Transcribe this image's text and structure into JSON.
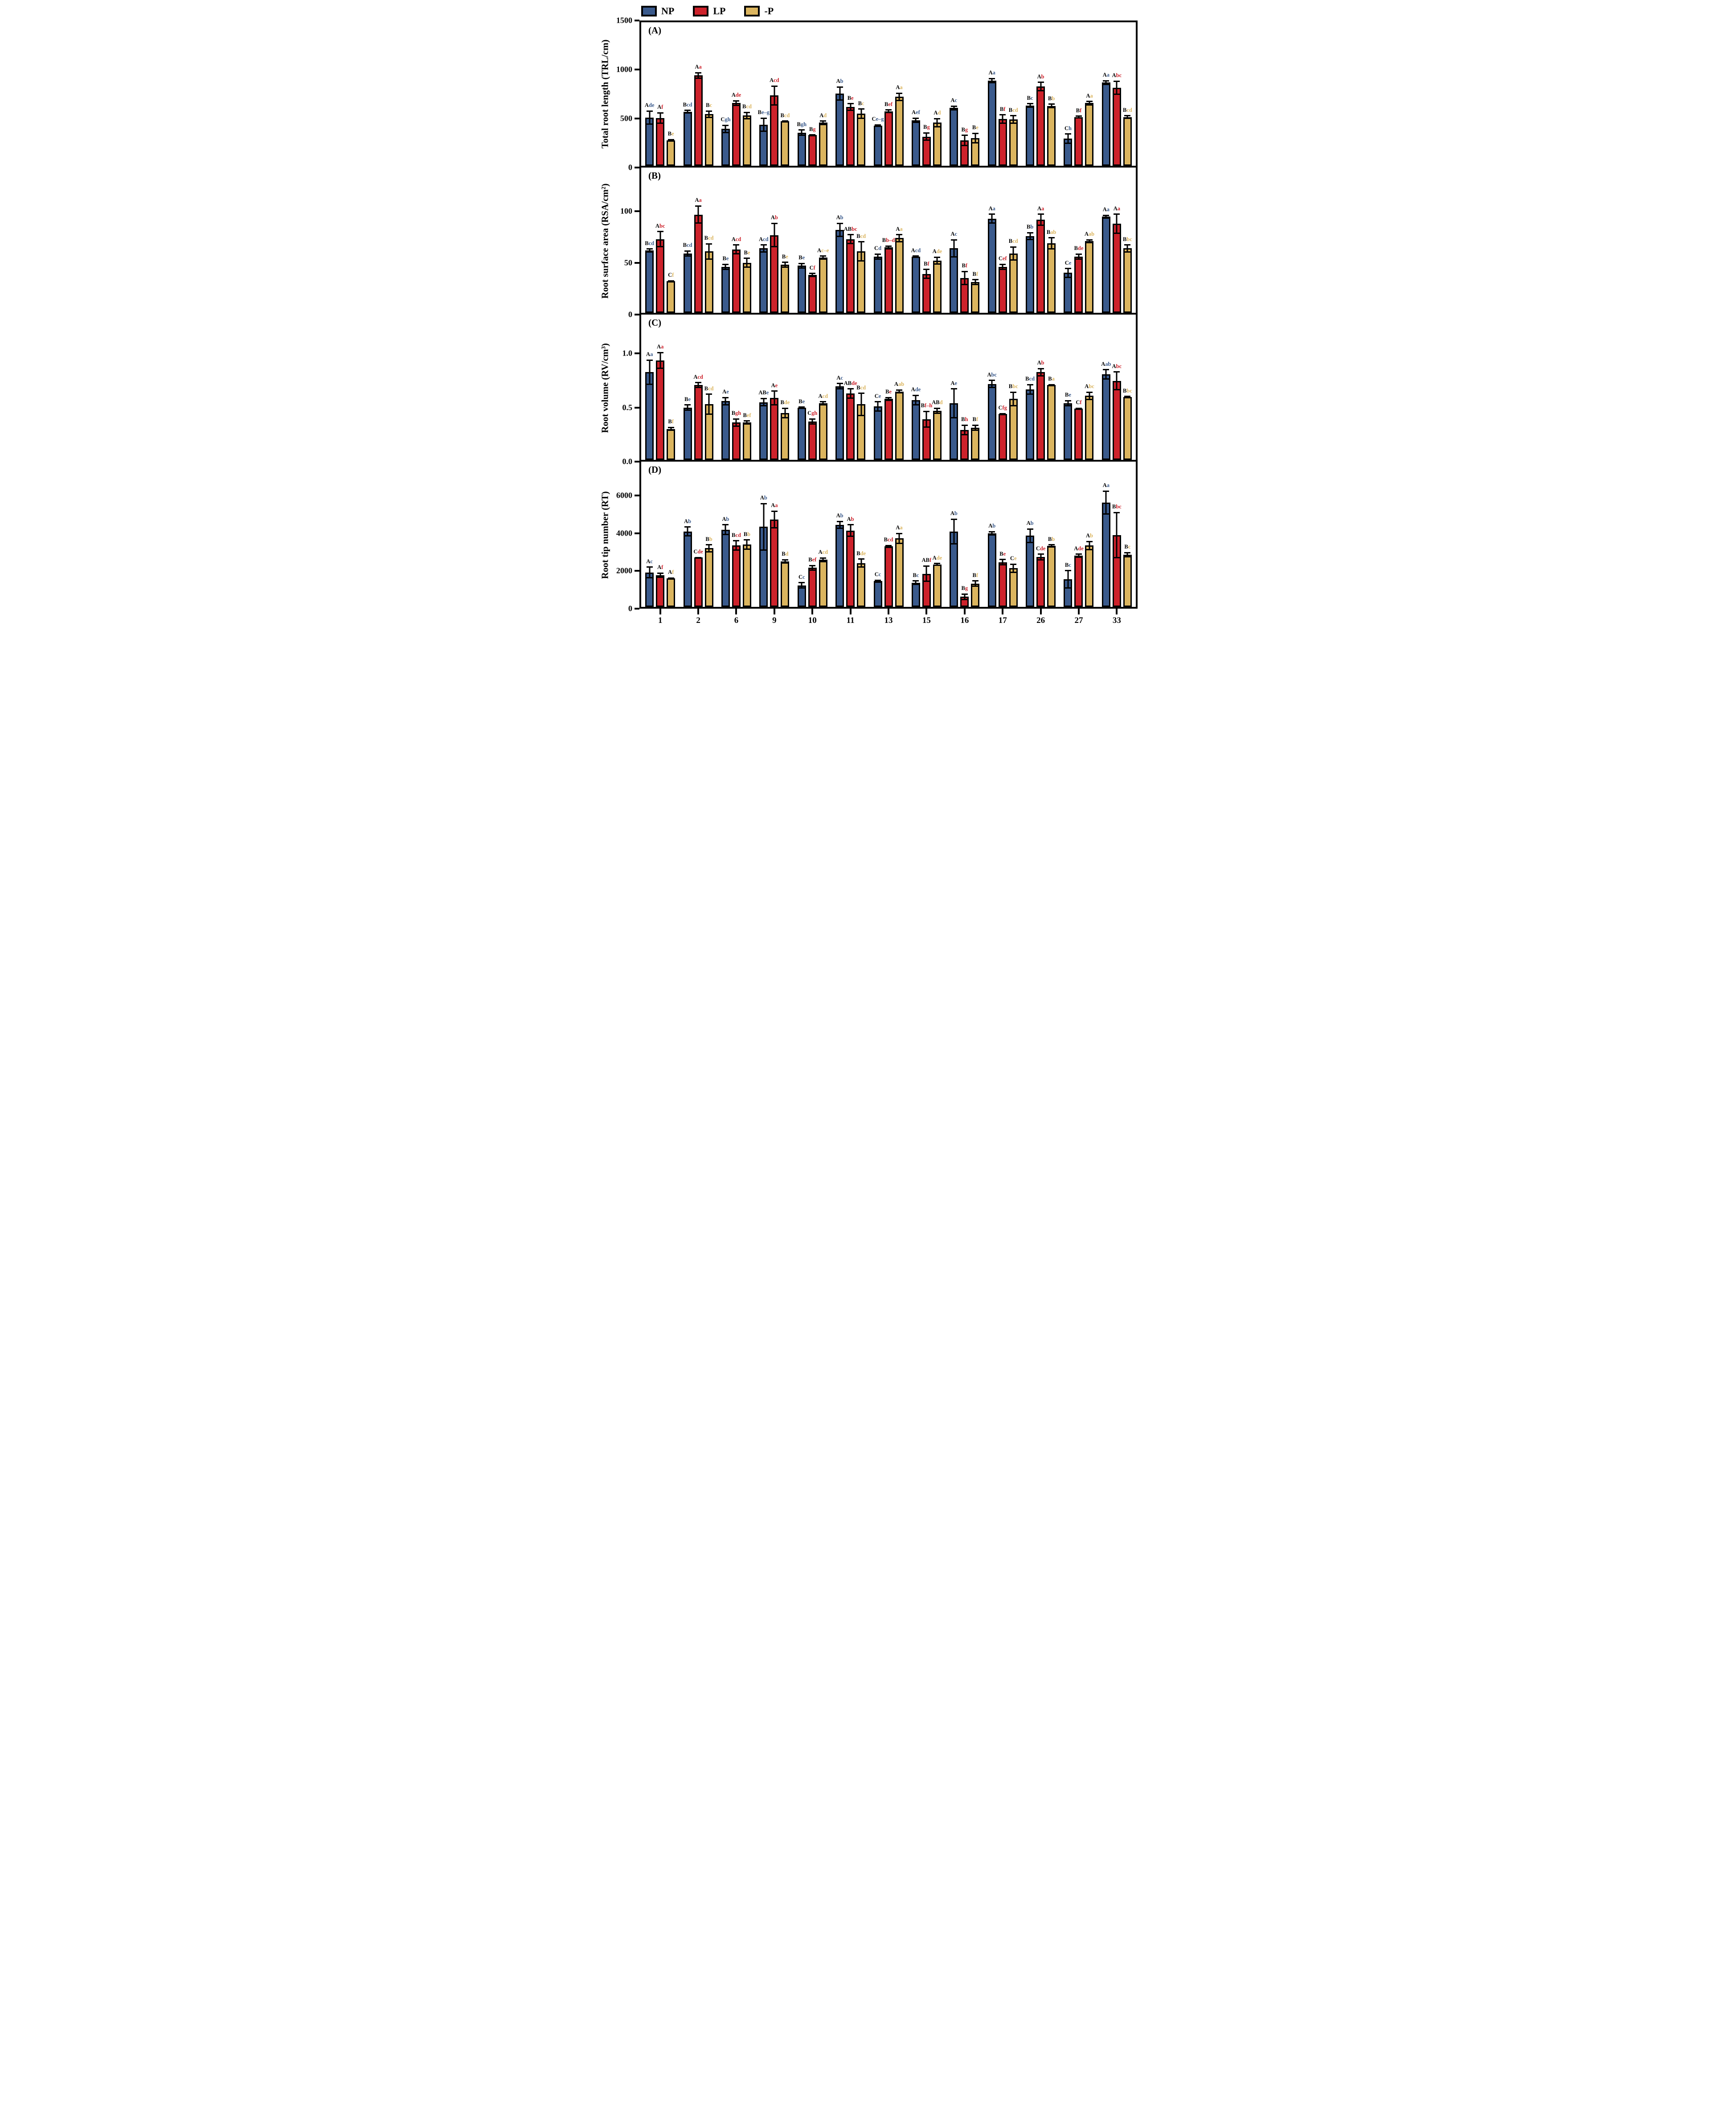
{
  "legend": {
    "items": [
      {
        "label": "NP",
        "color": "#3A5A8C"
      },
      {
        "label": "LP",
        "color": "#CD222B"
      },
      {
        "label": "-P",
        "color": "#DBB55F"
      }
    ]
  },
  "sig_note": "Uppercase letters are shown in black; lowercase letters are shown in the series color.",
  "chart_data": [
    {
      "type": "bar",
      "panel_letter": "(A)",
      "ylabel": "Total root length (TRL/cm)",
      "ymax": 1500,
      "yticks": [
        0,
        500,
        1000,
        1500
      ],
      "ytick_labels": [
        "0",
        "500",
        "1000",
        "1500"
      ],
      "grid": false,
      "categories": [
        "1",
        "2",
        "6",
        "9",
        "10",
        "11",
        "13",
        "15",
        "16",
        "17",
        "26",
        "27",
        "33"
      ],
      "series": [
        {
          "name": "NP",
          "color": "#3A5A8C",
          "values": [
            505,
            565,
            385,
            430,
            345,
            755,
            420,
            475,
            605,
            890,
            630,
            285,
            870
          ],
          "errors": [
            75,
            20,
            45,
            75,
            35,
            75,
            15,
            30,
            25,
            30,
            25,
            55,
            25
          ],
          "sig_labels": [
            "Ade",
            "Bcd",
            "Cgh",
            "Be–g",
            "Bgh",
            "Ab",
            "Ce–g",
            "Aef",
            "Ac",
            "Aa",
            "Bc",
            "Ch",
            "Aa"
          ]
        },
        {
          "name": "LP",
          "color": "#CD222B",
          "values": [
            500,
            945,
            655,
            735,
            320,
            615,
            570,
            305,
            265,
            490,
            830,
            510,
            815
          ],
          "errors": [
            60,
            35,
            30,
            105,
            10,
            40,
            20,
            45,
            60,
            50,
            50,
            15,
            75
          ],
          "sig_labels": [
            "Af",
            "Aa",
            "Ade",
            "Acd",
            "Bg",
            "Be",
            "Bef",
            "Bg",
            "Bg",
            "Bf",
            "Ab",
            "Bf",
            "Abc"
          ]
        },
        {
          "name": "-P",
          "color": "#DBB55F",
          "values": [
            265,
            540,
            525,
            465,
            450,
            545,
            720,
            450,
            290,
            485,
            625,
            655,
            510
          ],
          "errors": [
            15,
            40,
            40,
            10,
            25,
            55,
            45,
            50,
            55,
            45,
            25,
            25,
            20
          ],
          "sig_labels": [
            "Be",
            "Bc",
            "Bcd",
            "Bcd",
            "Ad",
            "Bc",
            "Aa",
            "Ad",
            "Be",
            "Bcd",
            "Bb",
            "Aa",
            "Bcd"
          ]
        }
      ]
    },
    {
      "type": "bar",
      "panel_letter": "(B)",
      "ylabel": "Root surface area (RSA/cm²)",
      "ymax": 142,
      "yticks": [
        0,
        50,
        100
      ],
      "ytick_labels": [
        "0",
        "50",
        "100"
      ],
      "grid": false,
      "categories": [
        "1",
        "2",
        "6",
        "9",
        "10",
        "11",
        "13",
        "15",
        "16",
        "17",
        "26",
        "27",
        "33"
      ],
      "series": [
        {
          "name": "NP",
          "color": "#3A5A8C",
          "values": [
            61,
            58,
            45,
            63,
            46,
            81,
            55,
            55,
            63,
            92,
            75,
            39,
            94
          ],
          "errors": [
            2,
            3,
            3,
            4,
            3,
            7,
            3,
            1,
            9,
            5,
            4,
            5,
            2
          ],
          "sig_labels": [
            "Bcd",
            "Bcd",
            "Be",
            "Acd",
            "Be",
            "Ab",
            "Cd",
            "Acd",
            "Ac",
            "Aa",
            "Bb",
            "Ce",
            "Aa"
          ]
        },
        {
          "name": "LP",
          "color": "#CD222B",
          "values": [
            72,
            96,
            62,
            76,
            37,
            72,
            64,
            38,
            34,
            45,
            91,
            55,
            87
          ],
          "errors": [
            8,
            9,
            5,
            12,
            2,
            5,
            2,
            5,
            7,
            3,
            6,
            3,
            10
          ],
          "sig_labels": [
            "Abc",
            "Aa",
            "Acd",
            "Ab",
            "Cf",
            "ABbc",
            "Bb–d",
            "Bf",
            "Bf",
            "Cef",
            "Aa",
            "Bde",
            "Aa"
          ]
        },
        {
          "name": "-P",
          "color": "#DBB55F",
          "values": [
            31,
            60,
            49,
            47,
            54,
            60,
            73,
            51,
            30,
            58,
            68,
            70,
            63
          ],
          "errors": [
            1,
            8,
            5,
            3,
            2,
            10,
            4,
            4,
            3,
            7,
            6,
            2,
            4
          ],
          "sig_labels": [
            "Cf",
            "Bcd",
            "Be",
            "Be",
            "Ac–e",
            "Bcd",
            "Aa",
            "Ade",
            "Bf",
            "Bcd",
            "Bab",
            "Aab",
            "Bbc"
          ]
        }
      ]
    },
    {
      "type": "bar",
      "panel_letter": "(C)",
      "ylabel": "Root volume (RV/cm³)",
      "ymax": 1.36,
      "yticks": [
        0,
        0.5,
        1.0
      ],
      "ytick_labels": [
        "0.0",
        "0.5",
        "1.0"
      ],
      "grid": false,
      "categories": [
        "1",
        "2",
        "6",
        "9",
        "10",
        "11",
        "13",
        "15",
        "16",
        "17",
        "26",
        "27",
        "33"
      ],
      "series": [
        {
          "name": "NP",
          "color": "#3A5A8C",
          "values": [
            0.82,
            0.49,
            0.55,
            0.54,
            0.49,
            0.69,
            0.5,
            0.56,
            0.53,
            0.71,
            0.66,
            0.53,
            0.8
          ],
          "errors": [
            0.12,
            0.03,
            0.04,
            0.04,
            0.01,
            0.03,
            0.05,
            0.05,
            0.14,
            0.04,
            0.05,
            0.03,
            0.05
          ],
          "sig_labels": [
            "Aa",
            "Be",
            "Ae",
            "ABe",
            "Be",
            "Ac",
            "Ce",
            "Ade",
            "Ae",
            "Abc",
            "Bcd",
            "Be",
            "Aab"
          ]
        },
        {
          "name": "LP",
          "color": "#CD222B",
          "values": [
            0.93,
            0.7,
            0.35,
            0.58,
            0.36,
            0.62,
            0.57,
            0.38,
            0.28,
            0.43,
            0.82,
            0.48,
            0.74
          ],
          "errors": [
            0.08,
            0.03,
            0.04,
            0.07,
            0.03,
            0.05,
            0.02,
            0.08,
            0.05,
            0.01,
            0.04,
            0.01,
            0.09
          ],
          "sig_labels": [
            "Aa",
            "Acd",
            "Bgh",
            "Ae",
            "Cgh",
            "ABde",
            "Be",
            "Bf–h",
            "Bh",
            "Cfg",
            "Ab",
            "Cf",
            "Abc"
          ]
        },
        {
          "name": "-P",
          "color": "#DBB55F",
          "values": [
            0.29,
            0.52,
            0.35,
            0.44,
            0.53,
            0.52,
            0.64,
            0.46,
            0.3,
            0.57,
            0.7,
            0.6,
            0.59
          ],
          "errors": [
            0.02,
            0.1,
            0.02,
            0.05,
            0.02,
            0.11,
            0.02,
            0.03,
            0.03,
            0.07,
            0.01,
            0.04,
            0.01
          ],
          "sig_labels": [
            "Bf",
            "Bcd",
            "Bef",
            "Bde",
            "Acd",
            "Bcd",
            "Aab",
            "ABd",
            "Bf",
            "Bbc",
            "Ba",
            "Abc",
            "Bbc"
          ]
        }
      ]
    },
    {
      "type": "bar",
      "panel_letter": "(D)",
      "ylabel": "Root tip number (RT)",
      "ymax": 7800,
      "yticks": [
        0,
        2000,
        4000,
        6000
      ],
      "ytick_labels": [
        "0",
        "2000",
        "4000",
        "6000"
      ],
      "grid": false,
      "categories": [
        "1",
        "2",
        "6",
        "9",
        "10",
        "11",
        "13",
        "15",
        "16",
        "17",
        "26",
        "27",
        "33"
      ],
      "series": [
        {
          "name": "NP",
          "color": "#3A5A8C",
          "values": [
            1850,
            4050,
            4150,
            4300,
            1150,
            4400,
            1380,
            1300,
            4050,
            3950,
            3820,
            1480,
            5600
          ],
          "errors": [
            320,
            280,
            300,
            1280,
            180,
            220,
            90,
            130,
            700,
            120,
            400,
            500,
            650
          ],
          "sig_labels": [
            "Ac",
            "Ab",
            "Ab",
            "Ab",
            "Cc",
            "Ab",
            "Cc",
            "Bc",
            "Ab",
            "Ab",
            "Ab",
            "Bc",
            "Aa"
          ]
        },
        {
          "name": "LP",
          "color": "#CD222B",
          "values": [
            1700,
            2650,
            3300,
            4700,
            2100,
            4100,
            3250,
            1780,
            550,
            2400,
            2680,
            2750,
            3850
          ],
          "errors": [
            150,
            40,
            280,
            480,
            150,
            350,
            80,
            450,
            180,
            180,
            180,
            120,
            1250
          ],
          "sig_labels": [
            "Af",
            "Cde",
            "Bcd",
            "Aa",
            "Bef",
            "Ab",
            "Bcd",
            "ABf",
            "Bg",
            "Be",
            "Cde",
            "Ade",
            "Bbc"
          ]
        },
        {
          "name": "-P",
          "color": "#DBB55F",
          "values": [
            1530,
            3150,
            3350,
            2450,
            2530,
            2350,
            3680,
            2280,
            1250,
            2080,
            3280,
            3300,
            2800
          ],
          "errors": [
            60,
            220,
            280,
            120,
            130,
            250,
            300,
            80,
            180,
            250,
            90,
            250,
            150
          ],
          "sig_labels": [
            "Af",
            "Bb",
            "Bb",
            "Bd",
            "Acd",
            "Bde",
            "Aa",
            "Ade",
            "Bf",
            "Ce",
            "Bb",
            "Ab",
            "Bc"
          ]
        }
      ]
    }
  ]
}
